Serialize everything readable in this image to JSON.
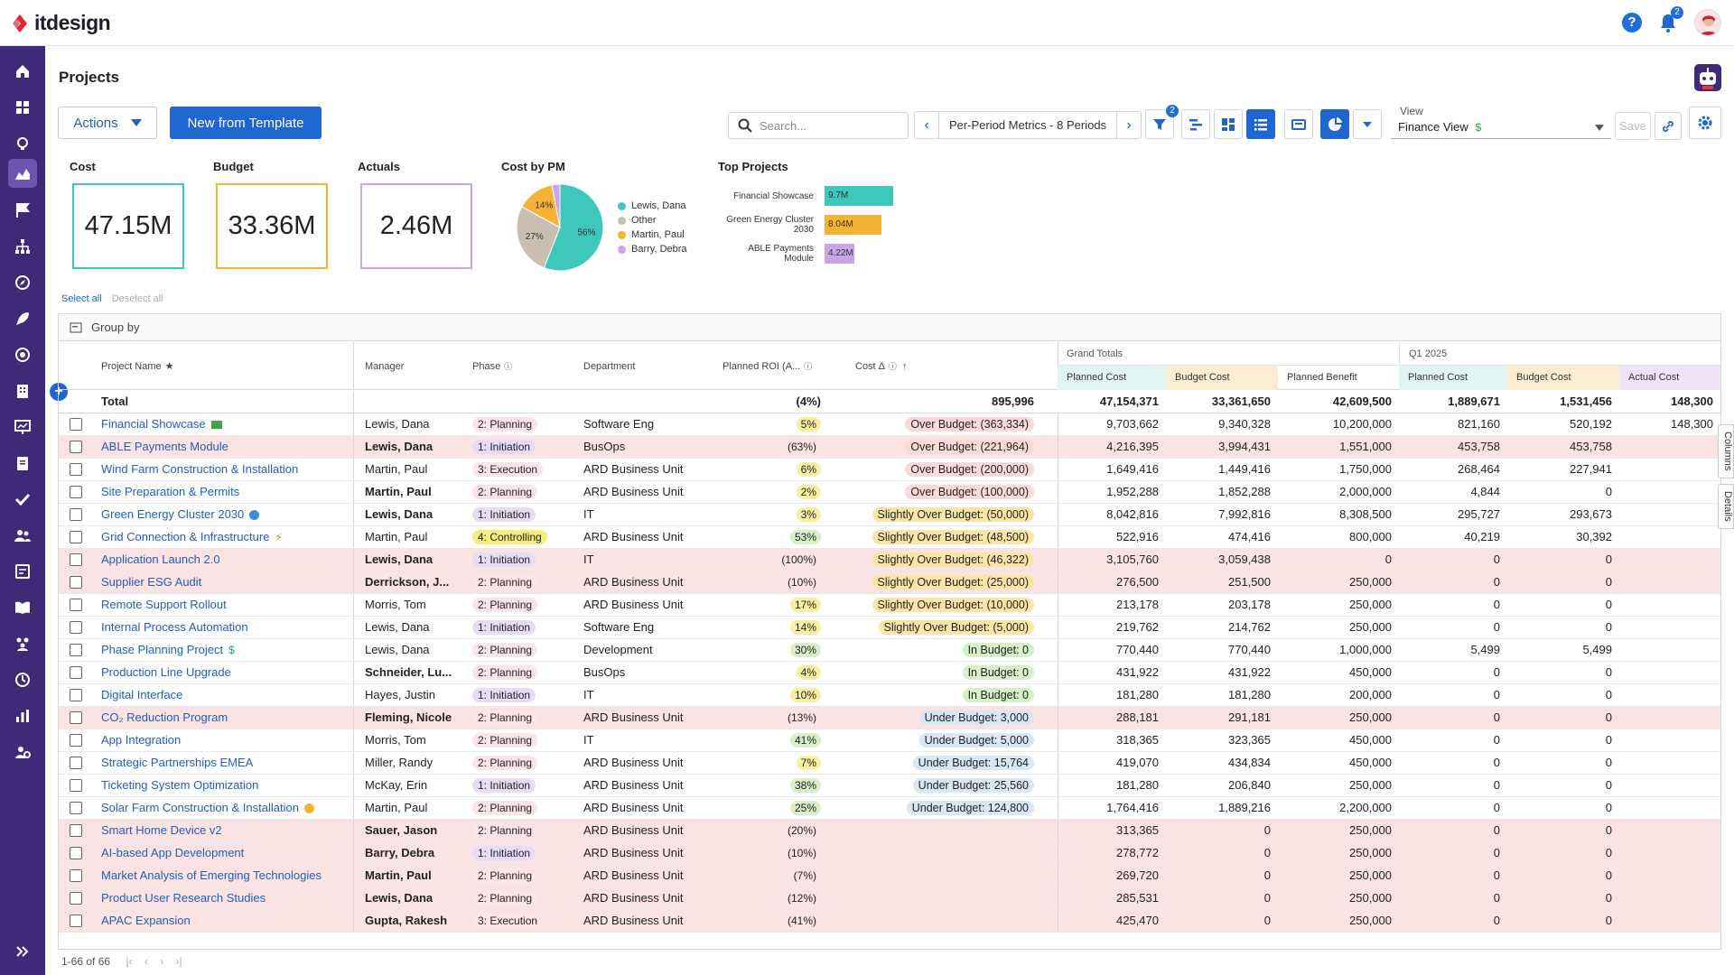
{
  "app": {
    "logo": "itdesign",
    "notifications": "2"
  },
  "page": {
    "title": "Projects"
  },
  "toolbar": {
    "actions_label": "Actions",
    "template_label": "New from Template",
    "search_placeholder": "Search...",
    "period_label": "Per-Period Metrics - 8 Periods",
    "filter_count": "2",
    "view_label": "View",
    "view_value": "Finance View",
    "save_label": "Save"
  },
  "kpis": {
    "cost_title": "Cost",
    "cost_value": "47.15M",
    "budget_title": "Budget",
    "budget_value": "33.36M",
    "actuals_title": "Actuals",
    "actuals_value": "2.46M"
  },
  "chart_data": [
    {
      "type": "pie",
      "title": "Cost by PM",
      "categories": [
        "Lewis, Dana",
        "Other",
        "Martin, Paul",
        "Barry, Debra"
      ],
      "values": [
        56,
        27,
        14,
        3
      ],
      "labels": [
        "56%",
        "27%",
        "14%",
        ""
      ],
      "colors": [
        "#3ec7bb",
        "#c8bfb0",
        "#f5b335",
        "#c9a5e8"
      ],
      "legend": "right"
    },
    {
      "type": "bar",
      "title": "Top Projects",
      "categories": [
        "Financial Showcase",
        "Green Energy Cluster 2030",
        "ABLE Payments Module"
      ],
      "values": [
        9.7,
        8.04,
        4.22
      ],
      "labels": [
        "9.7M",
        "8.04M",
        "4.22M"
      ],
      "colors": [
        "#3ec7bb",
        "#f5b335",
        "#c9a5e8"
      ],
      "orientation": "horizontal"
    }
  ],
  "selection": {
    "select_all": "Select all",
    "deselect_all": "Deselect all"
  },
  "grid": {
    "group_by": "Group by",
    "headers": {
      "project": "Project Name",
      "manager": "Manager",
      "phase": "Phase",
      "department": "Department",
      "roi": "Planned ROI (A...",
      "cost_delta": "Cost Δ",
      "grand_totals": "Grand Totals",
      "q1": "Q1 2025",
      "planned_cost": "Planned Cost",
      "budget_cost": "Budget Cost",
      "planned_benefit": "Planned Benefit",
      "q_planned_cost": "Planned Cost",
      "q_budget_cost": "Budget Cost",
      "actual_cost": "Actual Cost"
    },
    "total": {
      "label": "Total",
      "roi": "(4%)",
      "cost": "895,996",
      "pc": "47,154,371",
      "bc": "33,361,650",
      "pb": "42,609,500",
      "qpc": "1,889,671",
      "qbc": "1,531,456",
      "ac": "148,300"
    },
    "rows": [
      {
        "name": "Financial Showcase",
        "mgr": "Lewis, Dana",
        "b": false,
        "phase": "2: Planning",
        "dept": "Software Eng",
        "roi": "5%",
        "cost": "Over Budget: (363,334)",
        "pc": "9,703,662",
        "bc": "9,340,328",
        "pb": "10,200,000",
        "qpc": "821,160",
        "qbc": "520,192",
        "ac": "148,300",
        "red": false,
        "icon": "money"
      },
      {
        "name": "ABLE Payments Module",
        "mgr": "Lewis, Dana",
        "b": true,
        "phase": "1: Initiation",
        "dept": "BusOps",
        "roi": "(63%)",
        "cost": "Over Budget: (221,964)",
        "pc": "4,216,395",
        "bc": "3,994,431",
        "pb": "1,551,000",
        "qpc": "453,758",
        "qbc": "453,758",
        "ac": "",
        "red": true,
        "icon": ""
      },
      {
        "name": "Wind Farm Construction & Installation",
        "mgr": "Martin, Paul",
        "b": false,
        "phase": "3: Execution",
        "dept": "ARD Business Unit",
        "roi": "6%",
        "cost": "Over Budget: (200,000)",
        "pc": "1,649,416",
        "bc": "1,449,416",
        "pb": "1,750,000",
        "qpc": "268,464",
        "qbc": "227,941",
        "ac": "",
        "red": false,
        "icon": ""
      },
      {
        "name": "Site Preparation & Permits",
        "mgr": "Martin, Paul",
        "b": true,
        "phase": "2: Planning",
        "dept": "ARD Business Unit",
        "roi": "2%",
        "cost": "Over Budget: (100,000)",
        "pc": "1,952,288",
        "bc": "1,852,288",
        "pb": "2,000,000",
        "qpc": "4,844",
        "qbc": "0",
        "ac": "",
        "red": false,
        "icon": ""
      },
      {
        "name": "Green Energy Cluster 2030",
        "mgr": "Lewis, Dana",
        "b": true,
        "phase": "1: Initiation",
        "dept": "IT",
        "roi": "3%",
        "cost": "Slightly Over Budget: (50,000)",
        "pc": "8,042,816",
        "bc": "7,992,816",
        "pb": "8,308,500",
        "qpc": "295,727",
        "qbc": "293,673",
        "ac": "",
        "red": false,
        "icon": "globe"
      },
      {
        "name": "Grid Connection & Infrastructure",
        "mgr": "Martin, Paul",
        "b": false,
        "phase": "4: Controlling",
        "dept": "ARD Business Unit",
        "roi": "53%",
        "cost": "Slightly Over Budget: (48,500)",
        "pc": "522,916",
        "bc": "474,416",
        "pb": "800,000",
        "qpc": "40,219",
        "qbc": "30,392",
        "ac": "",
        "red": false,
        "icon": "bolt"
      },
      {
        "name": "Application Launch 2.0",
        "mgr": "Lewis, Dana",
        "b": true,
        "phase": "1: Initiation",
        "dept": "IT",
        "roi": "(100%)",
        "cost": "Slightly Over Budget: (46,322)",
        "pc": "3,105,760",
        "bc": "3,059,438",
        "pb": "0",
        "qpc": "0",
        "qbc": "0",
        "ac": "",
        "red": true,
        "icon": ""
      },
      {
        "name": "Supplier ESG Audit",
        "mgr": "Derrickson, J...",
        "b": true,
        "phase": "2: Planning",
        "dept": "ARD Business Unit",
        "roi": "(10%)",
        "cost": "Slightly Over Budget: (25,000)",
        "pc": "276,500",
        "bc": "251,500",
        "pb": "250,000",
        "qpc": "0",
        "qbc": "0",
        "ac": "",
        "red": true,
        "icon": ""
      },
      {
        "name": "Remote Support Rollout",
        "mgr": "Morris, Tom",
        "b": false,
        "phase": "2: Planning",
        "dept": "ARD Business Unit",
        "roi": "17%",
        "cost": "Slightly Over Budget: (10,000)",
        "pc": "213,178",
        "bc": "203,178",
        "pb": "250,000",
        "qpc": "0",
        "qbc": "0",
        "ac": "",
        "red": false,
        "icon": ""
      },
      {
        "name": "Internal Process Automation",
        "mgr": "Lewis, Dana",
        "b": false,
        "phase": "1: Initiation",
        "dept": "Software Eng",
        "roi": "14%",
        "cost": "Slightly Over Budget: (5,000)",
        "pc": "219,762",
        "bc": "214,762",
        "pb": "250,000",
        "qpc": "0",
        "qbc": "0",
        "ac": "",
        "red": false,
        "icon": ""
      },
      {
        "name": "Phase Planning Project",
        "mgr": "Lewis, Dana",
        "b": false,
        "phase": "2: Planning",
        "dept": "Development",
        "roi": "30%",
        "cost": "In Budget: 0",
        "pc": "770,440",
        "bc": "770,440",
        "pb": "1,000,000",
        "qpc": "5,499",
        "qbc": "5,499",
        "ac": "",
        "red": false,
        "icon": "dollar"
      },
      {
        "name": "Production Line Upgrade",
        "mgr": "Schneider, Lu...",
        "b": true,
        "phase": "2: Planning",
        "dept": "BusOps",
        "roi": "4%",
        "cost": "In Budget: 0",
        "pc": "431,922",
        "bc": "431,922",
        "pb": "450,000",
        "qpc": "0",
        "qbc": "0",
        "ac": "",
        "red": false,
        "icon": ""
      },
      {
        "name": "Digital Interface",
        "mgr": "Hayes, Justin",
        "b": false,
        "phase": "1: Initiation",
        "dept": "IT",
        "roi": "10%",
        "cost": "In Budget: 0",
        "pc": "181,280",
        "bc": "181,280",
        "pb": "200,000",
        "qpc": "0",
        "qbc": "0",
        "ac": "",
        "red": false,
        "icon": ""
      },
      {
        "name": "CO₂ Reduction Program",
        "mgr": "Fleming, Nicole",
        "b": true,
        "phase": "2: Planning",
        "dept": "ARD Business Unit",
        "roi": "(13%)",
        "cost": "Under Budget: 3,000",
        "pc": "288,181",
        "bc": "291,181",
        "pb": "250,000",
        "qpc": "0",
        "qbc": "0",
        "ac": "",
        "red": true,
        "icon": ""
      },
      {
        "name": "App Integration",
        "mgr": "Morris, Tom",
        "b": false,
        "phase": "2: Planning",
        "dept": "IT",
        "roi": "41%",
        "cost": "Under Budget: 5,000",
        "pc": "318,365",
        "bc": "323,365",
        "pb": "450,000",
        "qpc": "0",
        "qbc": "0",
        "ac": "",
        "red": false,
        "icon": ""
      },
      {
        "name": "Strategic Partnerships EMEA",
        "mgr": "Miller, Randy",
        "b": false,
        "phase": "2: Planning",
        "dept": "ARD Business Unit",
        "roi": "7%",
        "cost": "Under Budget: 15,764",
        "pc": "419,070",
        "bc": "434,834",
        "pb": "450,000",
        "qpc": "0",
        "qbc": "0",
        "ac": "",
        "red": false,
        "icon": ""
      },
      {
        "name": "Ticketing System Optimization",
        "mgr": "McKay, Erin",
        "b": false,
        "phase": "1: Initiation",
        "dept": "ARD Business Unit",
        "roi": "38%",
        "cost": "Under Budget: 25,560",
        "pc": "181,280",
        "bc": "206,840",
        "pb": "250,000",
        "qpc": "0",
        "qbc": "0",
        "ac": "",
        "red": false,
        "icon": ""
      },
      {
        "name": "Solar Farm Construction & Installation",
        "mgr": "Martin, Paul",
        "b": false,
        "phase": "2: Planning",
        "dept": "ARD Business Unit",
        "roi": "25%",
        "cost": "Under Budget: 124,800",
        "pc": "1,764,416",
        "bc": "1,889,216",
        "pb": "2,200,000",
        "qpc": "0",
        "qbc": "0",
        "ac": "",
        "red": false,
        "icon": "sun"
      },
      {
        "name": "Smart Home Device v2",
        "mgr": "Sauer, Jason",
        "b": true,
        "phase": "2: Planning",
        "dept": "ARD Business Unit",
        "roi": "(20%)",
        "cost": "",
        "pc": "313,365",
        "bc": "0",
        "pb": "250,000",
        "qpc": "0",
        "qbc": "0",
        "ac": "",
        "red": true,
        "icon": ""
      },
      {
        "name": "AI-based App Development",
        "mgr": "Barry, Debra",
        "b": true,
        "phase": "1: Initiation",
        "dept": "ARD Business Unit",
        "roi": "(10%)",
        "cost": "",
        "pc": "278,772",
        "bc": "0",
        "pb": "250,000",
        "qpc": "0",
        "qbc": "0",
        "ac": "",
        "red": true,
        "icon": ""
      },
      {
        "name": "Market Analysis of Emerging Technologies",
        "mgr": "Martin, Paul",
        "b": true,
        "phase": "2: Planning",
        "dept": "ARD Business Unit",
        "roi": "(7%)",
        "cost": "",
        "pc": "269,720",
        "bc": "0",
        "pb": "250,000",
        "qpc": "0",
        "qbc": "0",
        "ac": "",
        "red": true,
        "icon": ""
      },
      {
        "name": "Product User Research Studies",
        "mgr": "Lewis, Dana",
        "b": true,
        "phase": "2: Planning",
        "dept": "ARD Business Unit",
        "roi": "(12%)",
        "cost": "",
        "pc": "285,531",
        "bc": "0",
        "pb": "250,000",
        "qpc": "0",
        "qbc": "0",
        "ac": "",
        "red": true,
        "icon": ""
      },
      {
        "name": "APAC Expansion",
        "mgr": "Gupta, Rakesh",
        "b": true,
        "phase": "3: Execution",
        "dept": "ARD Business Unit",
        "roi": "(41%)",
        "cost": "",
        "pc": "425,470",
        "bc": "0",
        "pb": "250,000",
        "qpc": "0",
        "qbc": "0",
        "ac": "",
        "red": true,
        "icon": ""
      }
    ]
  },
  "pager": {
    "label": "1-66 of 66"
  },
  "sidetabs": {
    "columns": "Columns",
    "details": "Details"
  },
  "colors": {
    "accent": "#1f66d1",
    "sidebar": "#3f2a78",
    "over": "#fbd9d9",
    "slight": "#fbe5a6",
    "in": "#d7f0c7",
    "under": "#d9e7f5"
  }
}
